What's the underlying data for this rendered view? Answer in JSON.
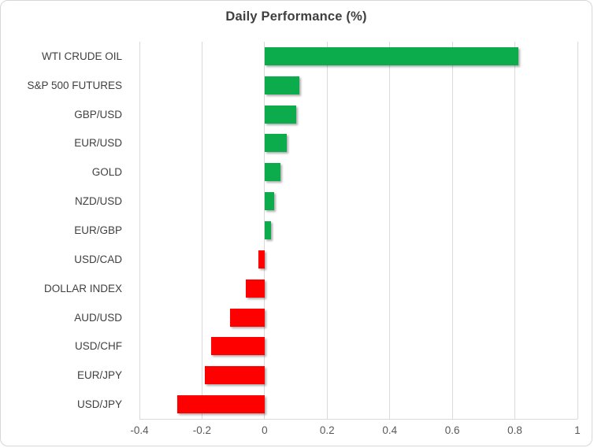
{
  "chart_data": {
    "type": "bar",
    "orientation": "horizontal",
    "title": "Daily Performance (%)",
    "categories": [
      "WTI CRUDE OIL",
      "S&P 500 FUTURES",
      "GBP/USD",
      "EUR/USD",
      "GOLD",
      "NZD/USD",
      "EUR/GBP",
      "USD/CAD",
      "DOLLAR INDEX",
      "AUD/USD",
      "USD/CHF",
      "EUR/JPY",
      "USD/JPY"
    ],
    "values": [
      0.81,
      0.11,
      0.1,
      0.07,
      0.05,
      0.03,
      0.02,
      -0.02,
      -0.06,
      -0.11,
      -0.17,
      -0.19,
      -0.28
    ],
    "xlim": [
      -0.4,
      1.0
    ],
    "xticks": [
      -0.4,
      -0.2,
      0,
      0.2,
      0.4,
      0.6,
      0.8,
      1
    ],
    "xtick_labels": [
      "-0.4",
      "-0.2",
      "0",
      "0.2",
      "0.4",
      "0.6",
      "0.8",
      "1"
    ],
    "grid": "vertical",
    "legend": "none",
    "colors": {
      "positive": "#0cab4c",
      "negative": "#ff0000",
      "gridline": "#d9d9d9",
      "title_text": "#3f3f3f",
      "category_text": "#404040",
      "tick_text": "#595959"
    }
  }
}
